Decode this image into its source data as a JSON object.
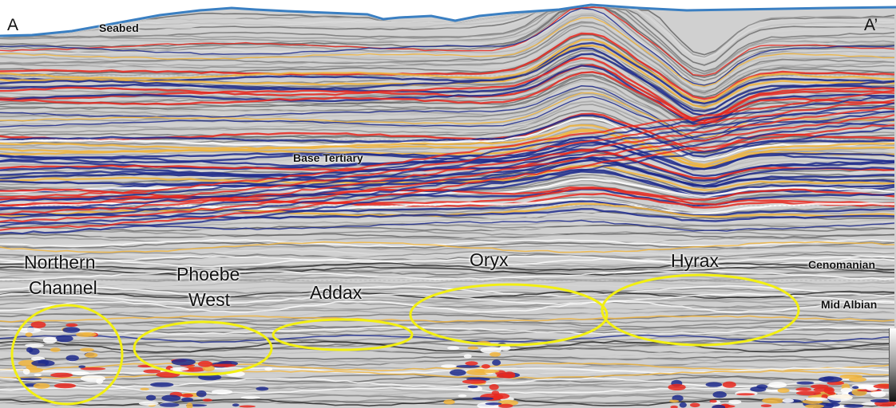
{
  "section": {
    "endpoints": {
      "left": "A",
      "right": "A’"
    },
    "horizons": {
      "seabed": "Seabed",
      "base_tertiary": "Base Tertiary",
      "cenomanian": "Cenomanian",
      "mid_albian": "Mid Albian"
    },
    "prospects": [
      {
        "line1": "Northern",
        "line2": "Channel"
      },
      {
        "line1": "Phoebe",
        "line2": "West"
      },
      {
        "line1": "Addax"
      },
      {
        "line1": "Oryx"
      },
      {
        "line1": "Hyrax"
      }
    ],
    "colors": {
      "seabed_line": "#3a7fc2",
      "highlight_ellipse": "#f2ef12",
      "amplitude_positive": "#e8281e",
      "amplitude_negative": "#1d2a8c",
      "amplitude_mid": "#f0b43c"
    }
  }
}
